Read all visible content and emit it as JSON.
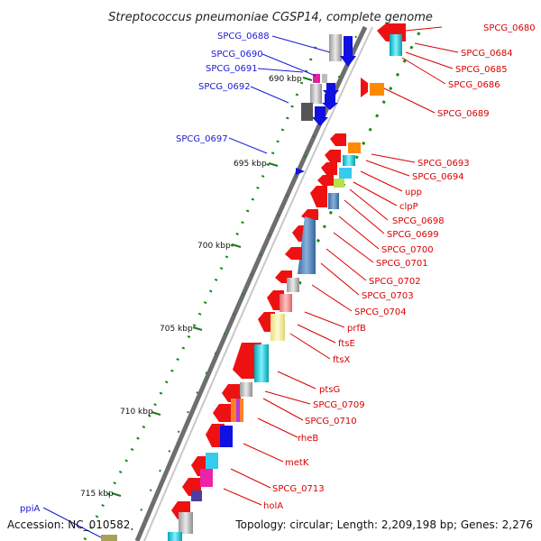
{
  "title": "Streptococcus pneumoniae CGSP14, complete genome",
  "footer": {
    "accession": "Accession: NC_010582",
    "topology": "Topology: circular; Length: 2,209,198 bp; Genes: 2,276"
  },
  "ticks": [
    "690 kbp",
    "695 kbp",
    "700 kbp",
    "705 kbp",
    "710 kbp",
    "715 kbp"
  ],
  "left_labels": [
    "SPCG_0688",
    "SPCG_0690",
    "SPCG_0691",
    "SPCG_0692",
    "SPCG_0697",
    "ppiA"
  ],
  "right_labels": [
    "SPCG_0680",
    "SPCG_0684",
    "SPCG_0685",
    "SPCG_0686",
    "SPCG_0689",
    "SPCG_0693",
    "SPCG_0694",
    "upp",
    "clpP",
    "SPCG_0698",
    "SPCG_0699",
    "SPCG_0700",
    "SPCG_0701",
    "SPCG_0702",
    "SPCG_0703",
    "SPCG_0704",
    "prfB",
    "ftsE",
    "ftsX",
    "ptsG",
    "SPCG_0709",
    "SPCG_0710",
    "rheB",
    "metK",
    "SPCG_0713",
    "holA"
  ],
  "colors": {
    "forward_gene": "#1010e0",
    "reverse_gene": "#ee1111",
    "backbone": "#707070",
    "gc_dots": "#138a13",
    "tick": "#1a7a1a",
    "label_blue": "#1a1ad6",
    "label_red": "#d90000"
  }
}
